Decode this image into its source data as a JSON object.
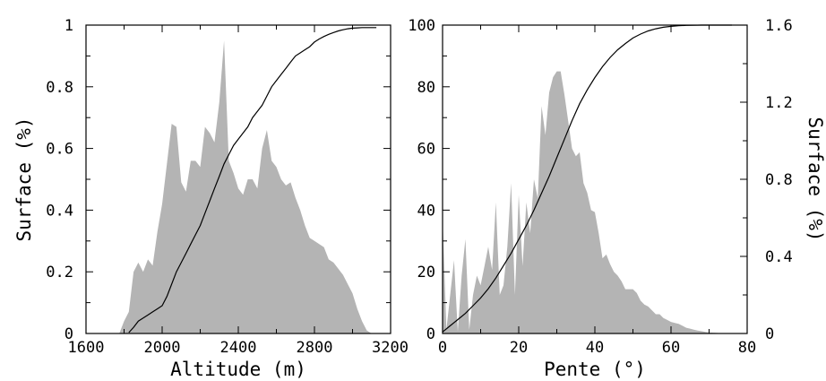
{
  "chart_data": [
    {
      "type": "area",
      "xlabel": "Altitude (m)",
      "ylabel": "Surface (%)",
      "xlim": [
        1600,
        3200
      ],
      "ylim": [
        0,
        1
      ],
      "x_ticks": [
        1600,
        2000,
        2400,
        2800,
        3200
      ],
      "x_tick_labels": [
        "1600",
        "2000",
        "2400",
        "2800",
        "3200"
      ],
      "y_ticks": [
        0,
        0.2,
        0.4,
        0.6,
        0.8,
        1
      ],
      "y_tick_labels": [
        "0",
        "0.2",
        "0.4",
        "0.6",
        "0.8",
        "1"
      ],
      "area_color": "#b4b4b4",
      "line_color": "#000000",
      "area": {
        "x": [
          1775,
          1800,
          1825,
          1850,
          1875,
          1900,
          1925,
          1950,
          1975,
          2000,
          2025,
          2050,
          2075,
          2100,
          2125,
          2150,
          2175,
          2200,
          2225,
          2250,
          2275,
          2300,
          2325,
          2350,
          2375,
          2400,
          2425,
          2450,
          2475,
          2500,
          2525,
          2550,
          2575,
          2600,
          2625,
          2650,
          2675,
          2700,
          2725,
          2750,
          2775,
          2800,
          2825,
          2850,
          2875,
          2900,
          2925,
          2950,
          2975,
          3000,
          3025,
          3050,
          3075,
          3100,
          3125
        ],
        "y": [
          0,
          0.04,
          0.07,
          0.2,
          0.23,
          0.2,
          0.24,
          0.22,
          0.33,
          0.42,
          0.55,
          0.68,
          0.67,
          0.49,
          0.46,
          0.56,
          0.56,
          0.54,
          0.67,
          0.65,
          0.62,
          0.75,
          0.95,
          0.56,
          0.52,
          0.47,
          0.45,
          0.5,
          0.5,
          0.47,
          0.6,
          0.66,
          0.56,
          0.54,
          0.5,
          0.48,
          0.49,
          0.44,
          0.4,
          0.35,
          0.31,
          0.3,
          0.29,
          0.28,
          0.24,
          0.23,
          0.21,
          0.19,
          0.16,
          0.13,
          0.08,
          0.04,
          0.01,
          0,
          0
        ]
      },
      "line": {
        "x": [
          1825,
          1850,
          1875,
          1900,
          1925,
          1950,
          1975,
          2000,
          2025,
          2050,
          2075,
          2100,
          2125,
          2150,
          2175,
          2200,
          2225,
          2250,
          2275,
          2300,
          2325,
          2350,
          2375,
          2400,
          2425,
          2450,
          2475,
          2500,
          2525,
          2550,
          2575,
          2600,
          2625,
          2650,
          2675,
          2700,
          2725,
          2750,
          2775,
          2800,
          2825,
          2850,
          2875,
          2900,
          2925,
          2950,
          2975,
          3000,
          3025,
          3050,
          3075,
          3100,
          3125
        ],
        "y": [
          0.003,
          0.02,
          0.04,
          0.05,
          0.06,
          0.07,
          0.08,
          0.09,
          0.12,
          0.16,
          0.2,
          0.23,
          0.26,
          0.29,
          0.32,
          0.35,
          0.39,
          0.43,
          0.47,
          0.51,
          0.55,
          0.58,
          0.61,
          0.63,
          0.65,
          0.67,
          0.7,
          0.72,
          0.74,
          0.77,
          0.8,
          0.82,
          0.84,
          0.86,
          0.88,
          0.9,
          0.91,
          0.92,
          0.93,
          0.945,
          0.955,
          0.963,
          0.97,
          0.976,
          0.981,
          0.985,
          0.988,
          0.99,
          0.991,
          0.992,
          0.992,
          0.992,
          0.992
        ]
      }
    },
    {
      "type": "area",
      "xlabel": "Pente (°)",
      "ylabel": "Surface (%)",
      "xlim": [
        0,
        80
      ],
      "ylim_left": [
        0,
        100
      ],
      "ylim_right": [
        0,
        1.6
      ],
      "x_ticks": [
        0,
        20,
        40,
        60,
        80
      ],
      "x_tick_labels": [
        "0",
        "20",
        "40",
        "60",
        "80"
      ],
      "y_left_ticks": [
        0,
        20,
        40,
        60,
        80,
        100
      ],
      "y_left_tick_labels": [
        "0",
        "20",
        "40",
        "60",
        "80",
        "100"
      ],
      "y_right_ticks": [
        0,
        0.4,
        0.8,
        1.2,
        1.6
      ],
      "y_right_tick_labels": [
        "0",
        "0.4",
        "0.8",
        "1.2",
        "1.6"
      ],
      "area_axis": "right",
      "line_axis": "left",
      "area_color": "#b4b4b4",
      "line_color": "#000000",
      "area": {
        "x": [
          0,
          1,
          2,
          3,
          4,
          5,
          6,
          7,
          8,
          9,
          10,
          11,
          12,
          13,
          14,
          15,
          16,
          17,
          18,
          19,
          20,
          21,
          22,
          23,
          24,
          25,
          26,
          27,
          28,
          29,
          30,
          31,
          32,
          33,
          34,
          35,
          36,
          37,
          38,
          39,
          40,
          41,
          42,
          43,
          44,
          45,
          46,
          47,
          48,
          49,
          50,
          51,
          52,
          53,
          54,
          55,
          56,
          57,
          58,
          59,
          60,
          61,
          62,
          63,
          64,
          65,
          66,
          67,
          68,
          69,
          70,
          71,
          72,
          73,
          74,
          75,
          76
        ],
        "y": [
          0.6,
          0.02,
          0.2,
          0.38,
          0.01,
          0.3,
          0.49,
          0.02,
          0.2,
          0.3,
          0.25,
          0.35,
          0.45,
          0.33,
          0.68,
          0.2,
          0.25,
          0.45,
          0.78,
          0.2,
          0.72,
          0.35,
          0.68,
          0.52,
          0.8,
          0.7,
          1.18,
          1.03,
          1.25,
          1.33,
          1.36,
          1.36,
          1.24,
          1.1,
          0.96,
          0.92,
          0.94,
          0.78,
          0.73,
          0.64,
          0.63,
          0.52,
          0.39,
          0.41,
          0.36,
          0.32,
          0.3,
          0.27,
          0.23,
          0.23,
          0.23,
          0.21,
          0.17,
          0.15,
          0.14,
          0.12,
          0.1,
          0.1,
          0.08,
          0.07,
          0.06,
          0.055,
          0.05,
          0.04,
          0.03,
          0.025,
          0.02,
          0.015,
          0.012,
          0.008,
          0.005,
          0.004,
          0.003,
          0.002,
          0.001,
          0.0005,
          0
        ]
      },
      "line": {
        "x": [
          0,
          2,
          4,
          6,
          8,
          10,
          12,
          14,
          16,
          18,
          20,
          22,
          24,
          26,
          28,
          30,
          32,
          34,
          36,
          38,
          40,
          42,
          44,
          46,
          48,
          50,
          52,
          54,
          56,
          58,
          60,
          62,
          64,
          66,
          68,
          70,
          72,
          74,
          76
        ],
        "y": [
          0.5,
          2.5,
          4.5,
          6.5,
          9,
          11.5,
          14.5,
          18,
          22,
          26,
          30.5,
          35,
          40,
          45.5,
          51,
          57,
          63,
          69,
          74.5,
          79,
          83,
          86.5,
          89.5,
          92,
          94,
          95.8,
          97.1,
          98.1,
          98.8,
          99.3,
          99.6,
          99.8,
          99.9,
          99.95,
          100,
          100,
          100,
          100,
          100
        ]
      }
    }
  ]
}
